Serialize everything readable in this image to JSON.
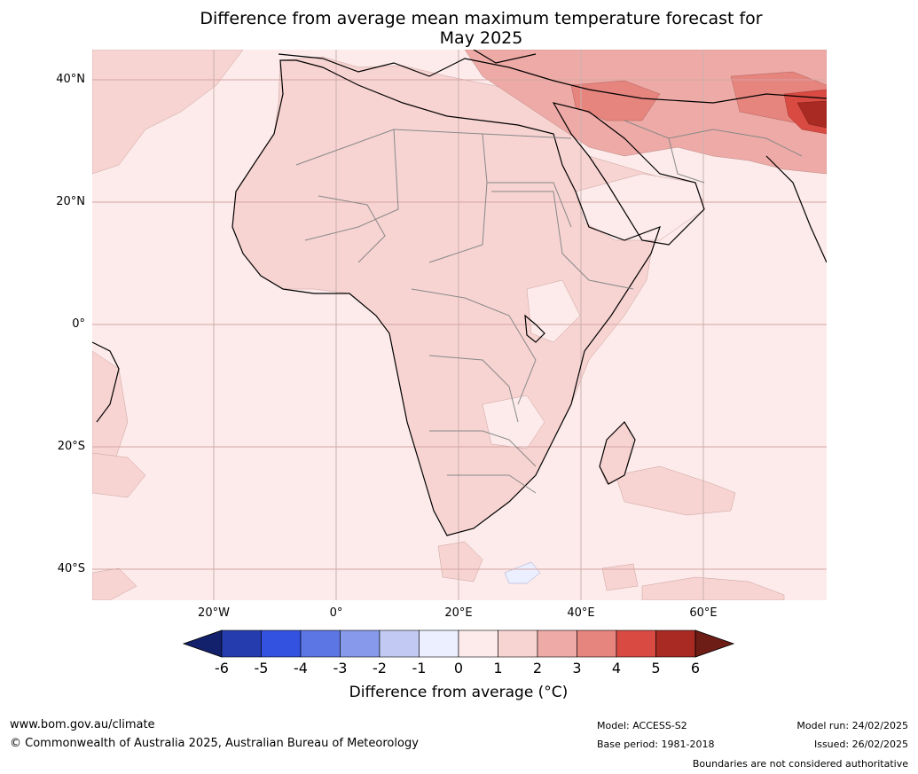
{
  "title_line1": "Difference from average mean maximum temperature forecast for",
  "title_line2": "May 2025",
  "lat_labels": [
    "40°N",
    "20°N",
    "0°",
    "20°S",
    "40°S"
  ],
  "lon_labels": [
    "20°W",
    "0°",
    "20°E",
    "40°E",
    "60°E"
  ],
  "colorbar": {
    "ticks": [
      "-6",
      "-5",
      "-4",
      "-3",
      "-2",
      "-1",
      "0",
      "1",
      "2",
      "3",
      "4",
      "5",
      "6"
    ],
    "colors": [
      "#13206b",
      "#243cae",
      "#3352e0",
      "#5c76e3",
      "#8799ea",
      "#c2caf3",
      "#ecefff",
      "#fcebea",
      "#f7d4d2",
      "#eeaaa6",
      "#e6847e",
      "#d94a42",
      "#a82a22",
      "#6e1c16"
    ],
    "label": "Difference from average ($^\\circ$C)"
  },
  "footer": {
    "site": "www.bom.gov.au/climate",
    "copyright": "© Commonwealth of Australia 2025, Australian Bureau of Meteorology",
    "model": "Model: ACCESS-S2",
    "base_period": "Base period: 1981-2018",
    "model_run": "Model run: 24/02/2025",
    "issued": "Issued: 26/02/2025",
    "disclaimer": "Boundaries are not considered authoritative"
  }
}
